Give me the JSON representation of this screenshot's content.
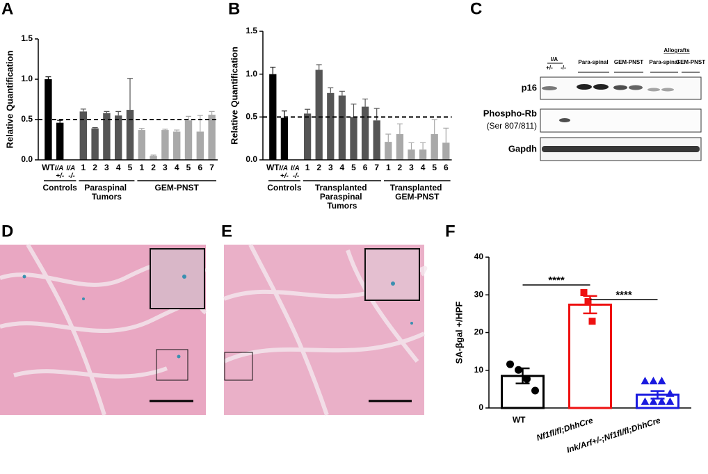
{
  "panels": [
    "A",
    "B",
    "C",
    "D",
    "E",
    "F"
  ],
  "chart_data": [
    {
      "type": "bar",
      "ylabel": "Relative Quantification",
      "ylim": [
        0,
        1.5
      ],
      "yticks": [
        {
          "value": 0,
          "label": "0.0"
        },
        0.5,
        {
          "value": 1,
          "label": "1.0"
        },
        1.5
      ],
      "reference_line": 0.5,
      "series": [
        {
          "name": "Controls",
          "color": "#000000",
          "categories": [
            "WT",
            "I/A +/-",
            "I/A -/-"
          ],
          "values": [
            1.0,
            0.46,
            0
          ],
          "errors": [
            0.03,
            0.03,
            0
          ]
        },
        {
          "name": "Paraspinal Tumors",
          "color": "#555555",
          "categories": [
            "1",
            "2",
            "3",
            "4",
            "5"
          ],
          "values": [
            0.6,
            0.39,
            0.58,
            0.55,
            0.62
          ],
          "errors": [
            0.03,
            0.01,
            0.02,
            0.05,
            0.39
          ]
        },
        {
          "name": "GEM-PNST",
          "color": "#a9a9a9",
          "categories": [
            "1",
            "2",
            "3",
            "4",
            "5",
            "6",
            "7"
          ],
          "values": [
            0.37,
            0.05,
            0.37,
            0.35,
            0.49,
            0.35,
            0.56
          ],
          "errors": [
            0.02,
            0.01,
            0.01,
            0.02,
            0.05,
            0.2,
            0.04
          ]
        }
      ]
    },
    {
      "type": "bar",
      "ylabel": "Relative Quantification",
      "ylim": [
        0,
        1.5
      ],
      "yticks": [
        {
          "value": 0,
          "label": "0.0"
        },
        0.5,
        {
          "value": 1,
          "label": "1.0"
        },
        1.5
      ],
      "reference_line": 0.5,
      "series": [
        {
          "name": "Controls",
          "color": "#000000",
          "categories": [
            "WT",
            "I/A +/-",
            "I/A -/-"
          ],
          "values": [
            1.0,
            0.49,
            0
          ],
          "errors": [
            0.08,
            0.08,
            0
          ]
        },
        {
          "name": "Transplanted Paraspinal Tumors",
          "color": "#555555",
          "categories": [
            "1",
            "2",
            "3",
            "4",
            "5",
            "6",
            "7"
          ],
          "values": [
            0.54,
            1.05,
            0.78,
            0.75,
            0.5,
            0.62,
            0.46
          ],
          "errors": [
            0.05,
            0.06,
            0.06,
            0.05,
            0.15,
            0.09,
            0.14
          ]
        },
        {
          "name": "Transplanted GEM-PNST",
          "color": "#a9a9a9",
          "categories": [
            "1",
            "2",
            "3",
            "4",
            "5",
            "6"
          ],
          "values": [
            0.21,
            0.3,
            0.12,
            0.12,
            0.3,
            0.2
          ],
          "errors": [
            0.09,
            0.12,
            0.08,
            0.08,
            0.17,
            0.17
          ]
        }
      ]
    },
    {
      "type": "bar-scatter",
      "ylabel": "SA-βgal +/HPF",
      "ylim": [
        0,
        40
      ],
      "yticks": [
        0,
        10,
        20,
        30,
        40
      ],
      "categories": [
        "WT",
        "Nf1fl/fl;DhhCre",
        "Ink/Arf+/-;Nf1fl/fl;DhhCre"
      ],
      "values": [
        8.5,
        27.4,
        3.5
      ],
      "errors": [
        2,
        2.3,
        1
      ],
      "colors": [
        "#000000",
        "#ee1111",
        "#1a1adf"
      ],
      "markers": [
        "circle",
        "square",
        "triangle"
      ],
      "points": [
        [
          11.6,
          10.1,
          7.7,
          4.6
        ],
        [
          30.6,
          28.2,
          23
        ],
        [
          7.2,
          7.2,
          7.2,
          3.9,
          1.7,
          1.7,
          1.7,
          1.7
        ]
      ],
      "annotations": [
        "****",
        "****"
      ]
    }
  ],
  "blot": {
    "genotype_group": "I/A",
    "genotypes": [
      "+/-",
      "-/-"
    ],
    "groups": [
      "Para-spinal",
      "GEM-PNST"
    ],
    "allografts": "Allografts",
    "allograft_groups": [
      "Para-spinal",
      "GEM-PNST"
    ],
    "rows": [
      "p16",
      "Phospho-Rb",
      "(Ser 807/811)",
      "Gapdh"
    ]
  }
}
